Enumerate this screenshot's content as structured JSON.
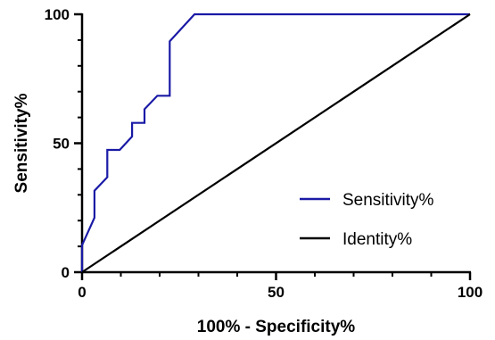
{
  "chart_data": {
    "type": "line",
    "title": "",
    "xlabel": "100% - Specificity%",
    "ylabel": "Sensitivity%",
    "xlim": [
      0,
      100
    ],
    "ylim": [
      0,
      100
    ],
    "x_ticks": [
      0,
      50,
      100
    ],
    "y_ticks": [
      0,
      50,
      100
    ],
    "x_tick_labels": [
      "0",
      "50",
      "100"
    ],
    "y_tick_labels": [
      "0",
      "50",
      "100"
    ],
    "grid": false,
    "legend_position": "bottom-right",
    "series": [
      {
        "name": "Sensitivity%",
        "color": "#1a1aa6",
        "x": [
          0,
          0,
          3.2,
          3.2,
          6.5,
          6.5,
          9.7,
          9.7,
          12.9,
          12.9,
          16.1,
          16.1,
          19.4,
          19.4,
          22.6,
          22.6,
          29.0,
          29.0,
          100
        ],
        "y": [
          0,
          10.5,
          21.1,
          31.6,
          36.8,
          47.4,
          47.4,
          47.4,
          52.6,
          57.9,
          57.9,
          63.2,
          68.4,
          68.4,
          68.4,
          89.5,
          100,
          100,
          100
        ]
      },
      {
        "name": "Identity%",
        "color": "#000000",
        "x": [
          0,
          100
        ],
        "y": [
          0,
          100
        ]
      }
    ]
  }
}
